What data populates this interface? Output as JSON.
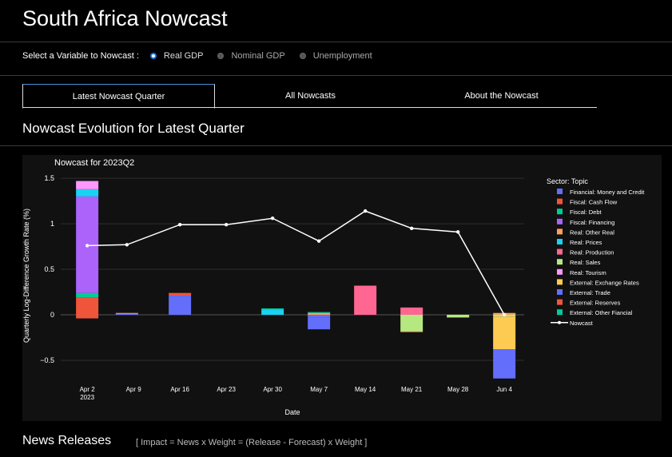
{
  "header": {
    "title": "South Africa Nowcast"
  },
  "variable_selector": {
    "label": "Select a Variable to Nowcast :",
    "options": [
      {
        "label": "Real GDP",
        "selected": true
      },
      {
        "label": "Nominal GDP",
        "selected": false
      },
      {
        "label": "Unemployment",
        "selected": false
      }
    ]
  },
  "tabs": [
    {
      "label": "Latest Nowcast Quarter",
      "active": true
    },
    {
      "label": "All Nowcasts",
      "active": false
    },
    {
      "label": "About the Nowcast",
      "active": false
    }
  ],
  "section": {
    "title": "Nowcast Evolution for Latest Quarter"
  },
  "news": {
    "title": "News Releases",
    "formula": "[ Impact = News x Weight = (Release - Forecast) x Weight ]"
  },
  "colors": {
    "accent": "#1a73e8",
    "background": "#000000",
    "chart_bg": "#111111"
  },
  "chart_data": {
    "type": "bar",
    "title": "Nowcast for 2023Q2",
    "xlabel": "Date",
    "ylabel": "Quarterly Log-Difference Growth Rate (%)",
    "ylim": [
      -0.72,
      1.5
    ],
    "yticks": [
      -0.5,
      0,
      0.5,
      1,
      1.5
    ],
    "ytick_labels": [
      "−0.5",
      "0",
      "0.5",
      "1",
      "1.5"
    ],
    "xticks": [
      {
        "label": "Apr 2",
        "sub": "2023",
        "day": 0
      },
      {
        "label": "Apr 9",
        "sub": "",
        "day": 7
      },
      {
        "label": "Apr 16",
        "sub": "",
        "day": 14
      },
      {
        "label": "Apr 23",
        "sub": "",
        "day": 21
      },
      {
        "label": "Apr 30",
        "sub": "",
        "day": 28
      },
      {
        "label": "May 7",
        "sub": "",
        "day": 35
      },
      {
        "label": "May 14",
        "sub": "",
        "day": 42
      },
      {
        "label": "May 21",
        "sub": "",
        "day": 49
      },
      {
        "label": "May 28",
        "sub": "",
        "day": 56
      },
      {
        "label": "Jun 4",
        "sub": "",
        "day": 63
      }
    ],
    "legend_title": "Sector: Topic",
    "legend_position": "right",
    "series": [
      {
        "name": "Financial: Money and Credit",
        "color": "#636efa"
      },
      {
        "name": "Fiscal: Cash Flow",
        "color": "#ef553b"
      },
      {
        "name": "Fiscal: Debt",
        "color": "#00cc96"
      },
      {
        "name": "Fiscal: Financing",
        "color": "#ab63fa"
      },
      {
        "name": "Real: Other Real",
        "color": "#ffa15a"
      },
      {
        "name": "Real: Prices",
        "color": "#19d3f3"
      },
      {
        "name": "Real: Production",
        "color": "#ff6692"
      },
      {
        "name": "Real: Sales",
        "color": "#b6e880"
      },
      {
        "name": "Real: Tourism",
        "color": "#ff97ff"
      },
      {
        "name": "External: Exchange Rates",
        "color": "#fecb52"
      },
      {
        "name": "External: Trade",
        "color": "#636efa"
      },
      {
        "name": "External: Reserves",
        "color": "#ef553b"
      },
      {
        "name": "External: Other Fiancial",
        "color": "#00cc96"
      }
    ],
    "line_series": {
      "name": "Nowcast",
      "color": "#ffffff"
    },
    "bars": [
      {
        "day": 0,
        "segments": [
          {
            "series": "External: Reserves",
            "value": 0.19
          },
          {
            "series": "Fiscal: Debt",
            "value": 0.05
          },
          {
            "series": "Fiscal: Financing",
            "value": 1.06
          },
          {
            "series": "Real: Prices",
            "value": 0.08
          },
          {
            "series": "Real: Tourism",
            "value": 0.09
          },
          {
            "series": "Fiscal: Cash Flow",
            "value": -0.04
          }
        ]
      },
      {
        "day": 6,
        "segments": [
          {
            "series": "Financial: Money and Credit",
            "value": 0.01
          },
          {
            "series": "Real: Other Real",
            "value": 0.01
          }
        ]
      },
      {
        "day": 14,
        "segments": [
          {
            "series": "Financial: Money and Credit",
            "value": 0.21
          },
          {
            "series": "Fiscal: Cash Flow",
            "value": 0.03
          }
        ]
      },
      {
        "day": 28,
        "segments": [
          {
            "series": "Real: Prices",
            "value": 0.06
          },
          {
            "series": "Fiscal: Debt",
            "value": 0.01
          }
        ]
      },
      {
        "day": 35,
        "segments": [
          {
            "series": "Real: Other Real",
            "value": 0.02
          },
          {
            "series": "Fiscal: Debt",
            "value": 0.01
          },
          {
            "series": "Financial: Money and Credit",
            "value": -0.03
          },
          {
            "series": "External: Trade",
            "value": -0.13
          }
        ]
      },
      {
        "day": 42,
        "segments": [
          {
            "series": "Real: Production",
            "value": 0.32
          }
        ]
      },
      {
        "day": 49,
        "segments": [
          {
            "series": "Real: Production",
            "value": 0.08
          },
          {
            "series": "Real: Sales",
            "value": -0.18
          },
          {
            "series": "Real: Other Real",
            "value": -0.01
          }
        ]
      },
      {
        "day": 56,
        "segments": [
          {
            "series": "Real: Sales",
            "value": -0.03
          }
        ]
      },
      {
        "day": 63,
        "segments": [
          {
            "series": "Real: Other Real",
            "value": 0.02
          },
          {
            "series": "Real: Sales",
            "value": -0.02
          },
          {
            "series": "External: Exchange Rates",
            "value": -0.36
          },
          {
            "series": "External: Trade",
            "value": -0.32
          }
        ]
      }
    ],
    "nowcast_line": [
      {
        "day": 0,
        "value": 0.76
      },
      {
        "day": 6,
        "value": 0.77
      },
      {
        "day": 14,
        "value": 0.99
      },
      {
        "day": 21,
        "value": 0.99
      },
      {
        "day": 28,
        "value": 1.06
      },
      {
        "day": 35,
        "value": 0.81
      },
      {
        "day": 42,
        "value": 1.14
      },
      {
        "day": 49,
        "value": 0.95
      },
      {
        "day": 56,
        "value": 0.91
      },
      {
        "day": 63,
        "value": 0.0
      }
    ]
  }
}
